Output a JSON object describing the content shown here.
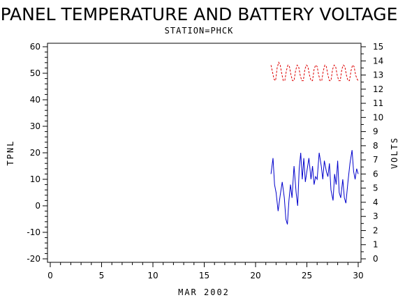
{
  "chart_data": {
    "type": "line",
    "title": "PANEL TEMPERATURE AND BATTERY VOLTAGE",
    "subtitle": "STATION=PHCK",
    "xlabel": "MAR 2002",
    "ylabel_left": "TPNL",
    "ylabel_right": "VOLTS",
    "xlim": [
      0,
      30
    ],
    "ylim_left": [
      -20,
      60
    ],
    "ylim_right": [
      0,
      15
    ],
    "x_ticks": [
      0,
      5,
      10,
      15,
      20,
      25,
      30
    ],
    "y_ticks_left": [
      -20,
      -10,
      0,
      10,
      20,
      30,
      40,
      50,
      60
    ],
    "y_ticks_right": [
      0,
      1,
      2,
      3,
      4,
      5,
      6,
      7,
      8,
      9,
      10,
      11,
      12,
      13,
      14,
      15
    ],
    "grid": false,
    "series": [
      {
        "axis": "left",
        "color": "#0000cc",
        "style": "solid",
        "x": [
          21.5,
          21.7,
          21.85,
          22.0,
          22.2,
          22.4,
          22.6,
          22.8,
          22.95,
          23.1,
          23.25,
          23.4,
          23.55,
          23.75,
          23.95,
          24.1,
          24.25,
          24.4,
          24.55,
          24.7,
          24.85,
          25.0,
          25.2,
          25.4,
          25.55,
          25.7,
          25.85,
          26.0,
          26.2,
          26.4,
          26.55,
          26.7,
          26.9,
          27.05,
          27.2,
          27.35,
          27.55,
          27.7,
          27.85,
          28.0,
          28.15,
          28.3,
          28.5,
          28.65,
          28.8,
          29.0,
          29.2,
          29.4,
          29.55,
          29.7,
          29.85,
          30.0
        ],
        "y": [
          12,
          18,
          8,
          5,
          -2,
          4,
          9,
          3,
          -5,
          -7,
          2,
          8,
          3,
          15,
          5,
          0,
          14,
          20,
          10,
          18,
          9,
          13,
          18,
          10,
          15,
          8,
          11,
          10,
          20,
          15,
          10,
          17,
          13,
          11,
          16,
          6,
          2,
          12,
          8,
          17,
          5,
          3,
          10,
          3,
          1,
          9,
          16,
          21,
          13,
          10,
          14,
          12
        ],
        "name": ""
      },
      {
        "axis": "right",
        "color": "#dd0000",
        "style": "dashed",
        "x": [
          21.5,
          21.65,
          21.8,
          21.95,
          22.1,
          22.25,
          22.4,
          22.55,
          22.7,
          22.85,
          23.0,
          23.15,
          23.3,
          23.45,
          23.6,
          23.75,
          23.9,
          24.05,
          24.2,
          24.35,
          24.5,
          24.65,
          24.8,
          24.95,
          25.1,
          25.25,
          25.4,
          25.55,
          25.7,
          25.85,
          26.0,
          26.15,
          26.3,
          26.45,
          26.6,
          26.75,
          26.9,
          27.05,
          27.2,
          27.35,
          27.5,
          27.65,
          27.8,
          27.95,
          28.1,
          28.25,
          28.4,
          28.55,
          28.7,
          28.85,
          29.0,
          29.15,
          29.3,
          29.45,
          29.6,
          29.75,
          29.9,
          30.0
        ],
        "y": [
          13.7,
          13.2,
          12.7,
          12.6,
          13.5,
          13.9,
          13.7,
          13.1,
          12.6,
          12.6,
          13.3,
          13.7,
          13.6,
          13.0,
          12.6,
          12.6,
          13.3,
          13.7,
          13.6,
          13.0,
          12.6,
          12.6,
          13.4,
          13.7,
          13.6,
          13.0,
          12.6,
          12.6,
          13.4,
          13.7,
          13.6,
          13.0,
          12.6,
          12.6,
          13.3,
          13.7,
          13.6,
          13.0,
          12.6,
          12.6,
          13.4,
          13.7,
          13.6,
          13.0,
          12.6,
          12.6,
          13.4,
          13.7,
          13.6,
          13.0,
          12.6,
          12.6,
          13.3,
          13.7,
          13.6,
          13.0,
          12.7,
          12.6
        ],
        "name": ""
      }
    ]
  }
}
